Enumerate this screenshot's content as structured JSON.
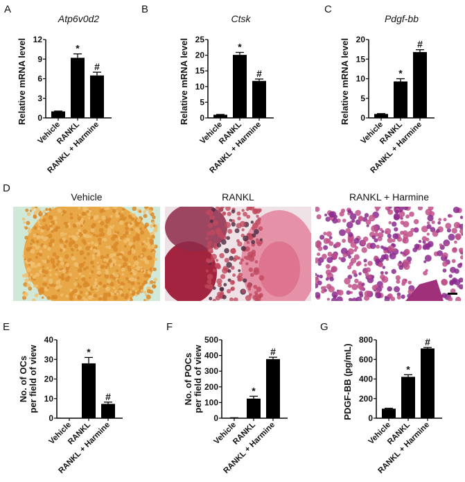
{
  "panel_d": {
    "letter": "D",
    "images": [
      {
        "label": "Vehicle",
        "base": "#e8a848",
        "cell": "#d98a2a",
        "bg": "#cfe8d8"
      },
      {
        "label": "RANKL",
        "base": "#e9a7b3",
        "cell": "#c0495e",
        "bg": "#f3eef0"
      },
      {
        "label": "RANKL + Harmine",
        "base": "#f2e6f0",
        "cell": "#8a2a8e",
        "bg": "#ffffff"
      }
    ],
    "scale_bar": true
  },
  "colors": {
    "bar": "#000000",
    "text": "#111111"
  },
  "chart_data": [
    {
      "panel": "A",
      "type": "bar",
      "title": "Atp6v0d2",
      "ylabel": "Relative mRNA level",
      "categories": [
        "Vehicle",
        "RANKL",
        "RANKL + Harmine"
      ],
      "values": [
        1.0,
        9.2,
        6.5
      ],
      "errors": [
        0.05,
        0.6,
        0.5
      ],
      "annotations": [
        "",
        "*",
        "#"
      ],
      "ylim": [
        0,
        12
      ],
      "yticks": [
        "0",
        "3",
        "6",
        "9",
        "12"
      ]
    },
    {
      "panel": "B",
      "type": "bar",
      "title": "Ctsk",
      "ylabel": "Relative mRNA level",
      "categories": [
        "Vehicle",
        "RANKL",
        "RANKL + Harmine"
      ],
      "values": [
        1.0,
        20.1,
        11.8
      ],
      "errors": [
        0.1,
        0.8,
        0.6
      ],
      "annotations": [
        "",
        "*",
        "#"
      ],
      "ylim": [
        0,
        25
      ],
      "yticks": [
        "0",
        "5",
        "10",
        "15",
        "20",
        "25"
      ]
    },
    {
      "panel": "C",
      "type": "bar",
      "title": "Pdgf-bb",
      "ylabel": "Relative mRNA level",
      "categories": [
        "Vehicle",
        "RANKL",
        "RANKL + Harmine"
      ],
      "values": [
        1.0,
        9.3,
        16.8
      ],
      "errors": [
        0.1,
        0.7,
        0.6
      ],
      "annotations": [
        "",
        "*",
        "#"
      ],
      "ylim": [
        0,
        20
      ],
      "yticks": [
        "0",
        "5",
        "10",
        "15",
        "20"
      ]
    },
    {
      "panel": "E",
      "type": "bar",
      "title": "",
      "ylabel": [
        "No. of OCs",
        "per field of view"
      ],
      "categories": [
        "Vehicle",
        "RANKL",
        "RANKL + Harmine"
      ],
      "values": [
        0,
        28,
        7.3
      ],
      "errors": [
        0,
        3,
        0.9
      ],
      "annotations": [
        "",
        "*",
        "#"
      ],
      "ylim": [
        0,
        40
      ],
      "yticks": [
        "0",
        "10",
        "20",
        "30",
        "40"
      ]
    },
    {
      "panel": "F",
      "type": "bar",
      "title": "",
      "ylabel": [
        "No. of POCs",
        "per field of view"
      ],
      "categories": [
        "Vehicle",
        "RANKL",
        "RANKL + Harmine"
      ],
      "values": [
        2,
        125,
        377
      ],
      "errors": [
        1,
        15,
        12
      ],
      "annotations": [
        "",
        "*",
        "#"
      ],
      "ylim": [
        0,
        500
      ],
      "yticks": [
        "0",
        "100",
        "200",
        "300",
        "400",
        "500"
      ]
    },
    {
      "panel": "G",
      "type": "bar",
      "title": "",
      "ylabel": "PDGF-BB (pg/mL)",
      "categories": [
        "Vehicle",
        "RANKL",
        "RANKL + Harmine"
      ],
      "values": [
        97,
        422,
        712
      ],
      "errors": [
        5,
        22,
        10
      ],
      "annotations": [
        "",
        "*",
        "#"
      ],
      "ylim": [
        0,
        800
      ],
      "yticks": [
        "0",
        "200",
        "400",
        "600",
        "800"
      ]
    }
  ]
}
